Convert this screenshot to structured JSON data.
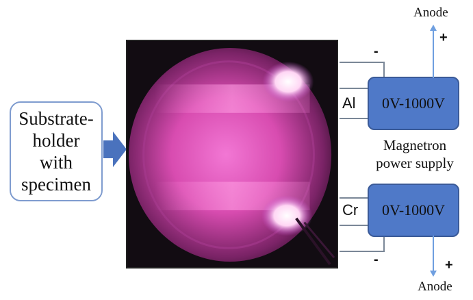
{
  "holder": {
    "lines": [
      "Substrate-",
      "holder",
      "with",
      "specimen"
    ]
  },
  "targets": {
    "top": "Al",
    "bottom": "Cr"
  },
  "power_supplies": {
    "top": "0V-1000V",
    "bottom": "0V-1000V"
  },
  "signs": {
    "top_minus": "-",
    "top_plus": "+",
    "bottom_minus": "-",
    "bottom_plus": "+"
  },
  "anode": {
    "top": "Anode",
    "bottom": "Anode"
  },
  "magnetron": {
    "lines": [
      "Magnetron",
      "power supply"
    ]
  },
  "colors": {
    "psu_fill": "#4f79c8",
    "arrow_fill": "#4a72bd",
    "holder_border": "#7f9ccf",
    "plasma": "#e05fc0",
    "wire": "#7a8797"
  },
  "icons": {
    "feed_arrow": "right-arrow-icon",
    "anode_arrow": "arrow-icon"
  }
}
